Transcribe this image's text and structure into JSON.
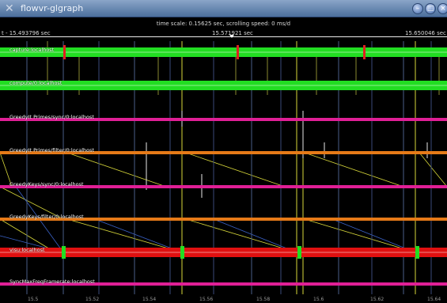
{
  "window": {
    "title": "flowvr-glgraph",
    "app_icon": "x-logo-icon",
    "buttons": [
      "minimize",
      "maximize",
      "close"
    ]
  },
  "header": {
    "timescale_text": "time scale: 0.15625 sec, scrolling speed: 0 ms/d",
    "time_left": "t - 15.493796 sec",
    "time_center": "15.571921 sec",
    "time_right": "15.650046 sec"
  },
  "tracks": [
    {
      "label": "capture:localhost",
      "color": "#22dd22",
      "thick": true
    },
    {
      "label": "compute/0:localhost",
      "color": "#22dd22",
      "thick": true
    },
    {
      "label": "GreedyIt Primes/sync/0:localhost",
      "color": "#e01f96",
      "thick": false
    },
    {
      "label": "GreedyIt Primes/filter/0:localhost",
      "color": "#e67a18",
      "thick": false
    },
    {
      "label": "GreedyKeys/sync/0:localhost",
      "color": "#e01f96",
      "thick": false
    },
    {
      "label": "GreedyKeys/filter/0:localhost",
      "color": "#e67a18",
      "thick": false
    },
    {
      "label": "visu:localhost",
      "color": "#e01010",
      "thick": true
    },
    {
      "label": "SyncMaxFreqFramerate:localhost",
      "color": "#e01f96",
      "thick": false
    }
  ],
  "axis_ticks": [
    "15.5",
    "15.52",
    "15.54",
    "15.56",
    "15.58",
    "15.6",
    "15.62",
    "15.64"
  ]
}
